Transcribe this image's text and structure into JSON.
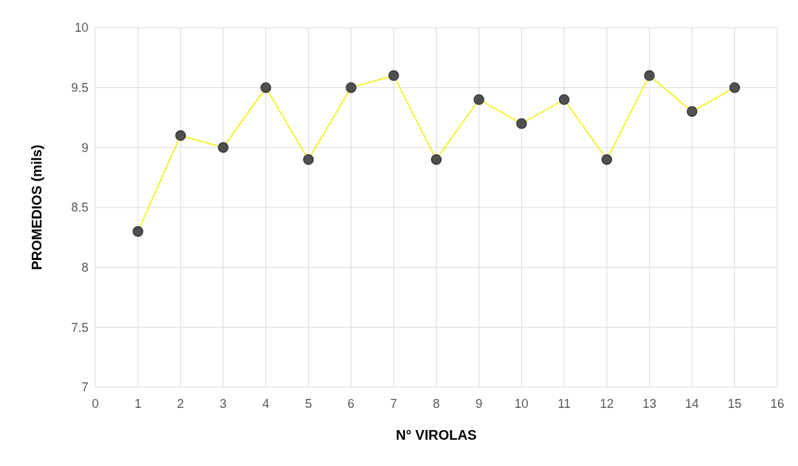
{
  "chart_data": {
    "type": "line",
    "xlabel": "N° VIROLAS",
    "ylabel": "PROMEDIOS (mils)",
    "x": [
      1,
      2,
      3,
      4,
      5,
      6,
      7,
      8,
      9,
      10,
      11,
      12,
      13,
      14,
      15
    ],
    "series": [
      {
        "color": "#f2f230",
        "values": [
          8.3,
          9.1,
          9.0,
          9.5,
          8.9,
          9.5,
          9.6,
          8.9,
          9.4,
          9.2,
          9.4,
          8.9,
          9.6,
          9.3,
          9.5
        ]
      }
    ],
    "xlim": [
      0,
      16
    ],
    "xticks": [
      0,
      1,
      2,
      3,
      4,
      5,
      6,
      7,
      8,
      9,
      10,
      11,
      12,
      13,
      14,
      15,
      16
    ],
    "ylim": [
      7,
      10
    ],
    "yticks": [
      7,
      7.5,
      8,
      8.5,
      9,
      9.5,
      10
    ],
    "grid": true,
    "marker": "circle",
    "line_style": "solid"
  }
}
